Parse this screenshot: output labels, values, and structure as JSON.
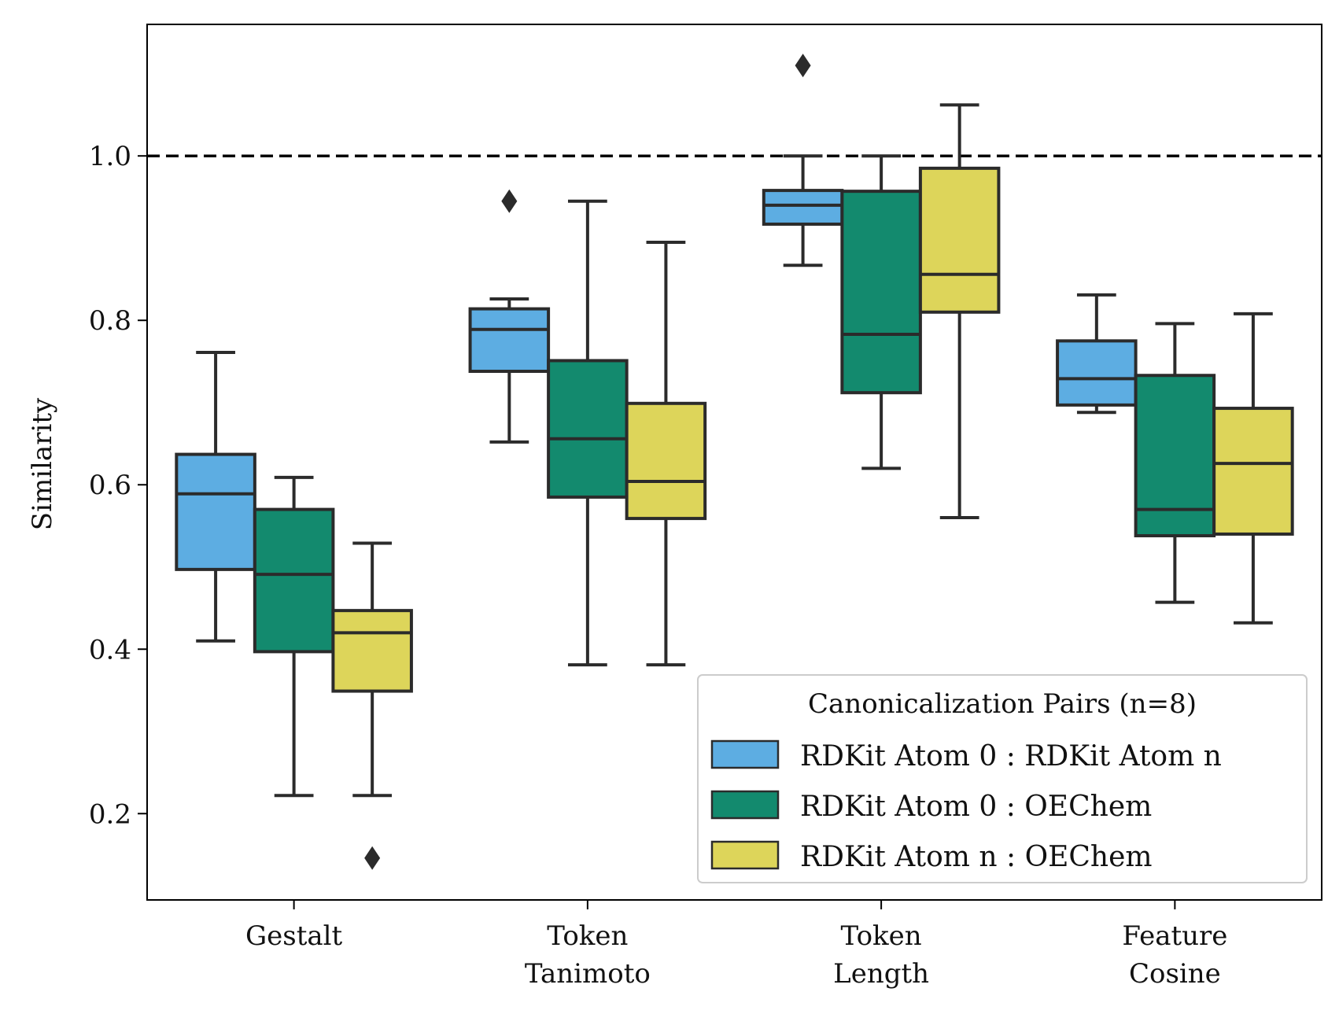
{
  "chart_data": {
    "type": "box",
    "title": "",
    "xlabel": "",
    "ylabel": "Similarity",
    "ylim": [
      0.095,
      1.16
    ],
    "yticks": [
      "0.2",
      "0.4",
      "0.6",
      "0.8",
      "1.0"
    ],
    "reference_line": {
      "y": 1.0,
      "style": "dashed",
      "color": "#000000"
    },
    "grid": false,
    "categories": [
      [
        "Gestalt"
      ],
      [
        "Token",
        "Tanimoto"
      ],
      [
        "Token",
        "Length"
      ],
      [
        "Feature",
        "Cosine"
      ]
    ],
    "legend": {
      "title": "Canonicalization Pairs (n=8)",
      "placement": "lower-right"
    },
    "series": [
      {
        "name": "RDKit Atom 0 : RDKit Atom n",
        "color": "#5DADE2",
        "boxes": [
          {
            "whislo": 0.41,
            "q1": 0.497,
            "median": 0.589,
            "q3": 0.637,
            "whishi": 0.761,
            "fliers": []
          },
          {
            "whislo": 0.652,
            "q1": 0.738,
            "median": 0.789,
            "q3": 0.814,
            "whishi": 0.826,
            "fliers": [
              0.945
            ]
          },
          {
            "whislo": 0.867,
            "q1": 0.917,
            "median": 0.94,
            "q3": 0.958,
            "whishi": 1.0,
            "fliers": [
              1.11
            ]
          },
          {
            "whislo": 0.688,
            "q1": 0.697,
            "median": 0.729,
            "q3": 0.775,
            "whishi": 0.831,
            "fliers": []
          }
        ]
      },
      {
        "name": "RDKit Atom 0 : OEChem",
        "color": "#138A6E",
        "boxes": [
          {
            "whislo": 0.222,
            "q1": 0.397,
            "median": 0.491,
            "q3": 0.57,
            "whishi": 0.609,
            "fliers": []
          },
          {
            "whislo": 0.381,
            "q1": 0.585,
            "median": 0.656,
            "q3": 0.751,
            "whishi": 0.945,
            "fliers": []
          },
          {
            "whislo": 0.62,
            "q1": 0.712,
            "median": 0.783,
            "q3": 0.957,
            "whishi": 1.0,
            "fliers": []
          },
          {
            "whislo": 0.457,
            "q1": 0.538,
            "median": 0.57,
            "q3": 0.733,
            "whishi": 0.796,
            "fliers": []
          }
        ]
      },
      {
        "name": "RDKit Atom n : OEChem",
        "color": "#DDD55A",
        "boxes": [
          {
            "whislo": 0.222,
            "q1": 0.349,
            "median": 0.42,
            "q3": 0.447,
            "whishi": 0.529,
            "fliers": [
              0.146
            ]
          },
          {
            "whislo": 0.381,
            "q1": 0.559,
            "median": 0.604,
            "q3": 0.699,
            "whishi": 0.895,
            "fliers": []
          },
          {
            "whislo": 0.56,
            "q1": 0.81,
            "median": 0.856,
            "q3": 0.985,
            "whishi": 1.062,
            "fliers": []
          },
          {
            "whislo": 0.432,
            "q1": 0.54,
            "median": 0.626,
            "q3": 0.693,
            "whishi": 0.808,
            "fliers": []
          }
        ]
      }
    ]
  }
}
